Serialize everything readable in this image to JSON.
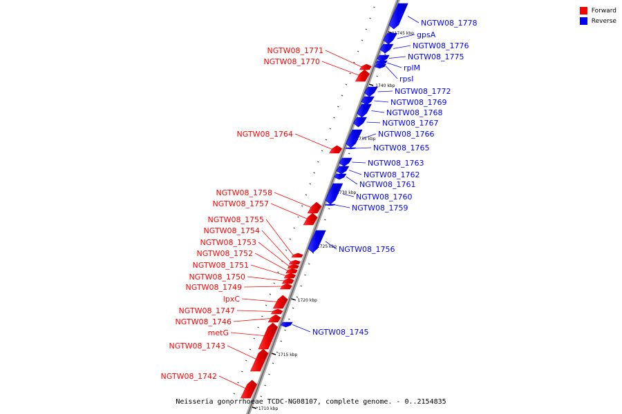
{
  "legend": [
    {
      "label": "Forward",
      "color": "#ff0000"
    },
    {
      "label": "Reverse",
      "color": "#0000ff"
    }
  ],
  "caption": "Neisseria gonorrhoeae TCDC-NG08107, complete genome. - 0..2154835",
  "ticks": [
    {
      "label": "1745 kbp",
      "pos_kbp": 1745
    },
    {
      "label": "1740 kbp",
      "pos_kbp": 1740
    },
    {
      "label": "1735 kbp",
      "pos_kbp": 1735
    },
    {
      "label": "1730 kbp",
      "pos_kbp": 1730
    },
    {
      "label": "1725 kbp",
      "pos_kbp": 1725
    },
    {
      "label": "1720 kbp",
      "pos_kbp": 1720
    },
    {
      "label": "1715 kbp",
      "pos_kbp": 1715
    },
    {
      "label": "1710 kbp",
      "pos_kbp": 1710
    }
  ],
  "genes": [
    {
      "name": "NGTW08_1778",
      "strand": "Reverse"
    },
    {
      "name": "gpsA",
      "strand": "Reverse"
    },
    {
      "name": "NGTW08_1776",
      "strand": "Reverse"
    },
    {
      "name": "NGTW08_1775",
      "strand": "Reverse"
    },
    {
      "name": "rplM",
      "strand": "Reverse"
    },
    {
      "name": "rpsI",
      "strand": "Reverse"
    },
    {
      "name": "NGTW08_1772",
      "strand": "Reverse"
    },
    {
      "name": "NGTW08_1769",
      "strand": "Reverse"
    },
    {
      "name": "NGTW08_1768",
      "strand": "Reverse"
    },
    {
      "name": "NGTW08_1767",
      "strand": "Reverse"
    },
    {
      "name": "NGTW08_1766",
      "strand": "Reverse"
    },
    {
      "name": "NGTW08_1765",
      "strand": "Reverse"
    },
    {
      "name": "NGTW08_1763",
      "strand": "Reverse"
    },
    {
      "name": "NGTW08_1762",
      "strand": "Reverse"
    },
    {
      "name": "NGTW08_1761",
      "strand": "Reverse"
    },
    {
      "name": "NGTW08_1760",
      "strand": "Reverse"
    },
    {
      "name": "NGTW08_1759",
      "strand": "Reverse"
    },
    {
      "name": "NGTW08_1756",
      "strand": "Reverse"
    },
    {
      "name": "NGTW08_1745",
      "strand": "Reverse"
    },
    {
      "name": "NGTW08_1771",
      "strand": "Forward"
    },
    {
      "name": "NGTW08_1770",
      "strand": "Forward"
    },
    {
      "name": "NGTW08_1764",
      "strand": "Forward"
    },
    {
      "name": "NGTW08_1758",
      "strand": "Forward"
    },
    {
      "name": "NGTW08_1757",
      "strand": "Forward"
    },
    {
      "name": "NGTW08_1755",
      "strand": "Forward"
    },
    {
      "name": "NGTW08_1754",
      "strand": "Forward"
    },
    {
      "name": "NGTW08_1753",
      "strand": "Forward"
    },
    {
      "name": "NGTW08_1752",
      "strand": "Forward"
    },
    {
      "name": "NGTW08_1751",
      "strand": "Forward"
    },
    {
      "name": "NGTW08_1750",
      "strand": "Forward"
    },
    {
      "name": "NGTW08_1749",
      "strand": "Forward"
    },
    {
      "name": "lpxC",
      "strand": "Forward"
    },
    {
      "name": "NGTW08_1747",
      "strand": "Forward"
    },
    {
      "name": "NGTW08_1746",
      "strand": "Forward"
    },
    {
      "name": "metG",
      "strand": "Forward"
    },
    {
      "name": "NGTW08_1743",
      "strand": "Forward"
    },
    {
      "name": "NGTW08_1742",
      "strand": "Forward"
    }
  ]
}
